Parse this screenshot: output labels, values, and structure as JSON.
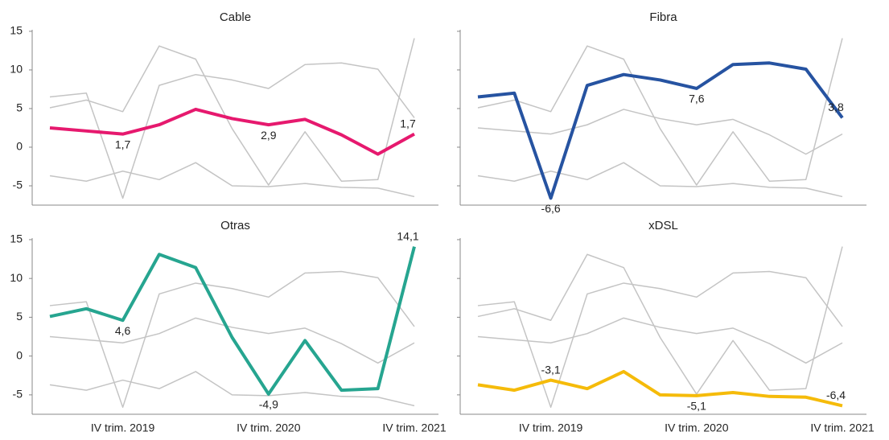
{
  "chart_data": {
    "type": "line",
    "categories": [
      null,
      null,
      "IV trim. 2019",
      null,
      null,
      null,
      "IV trim. 2020",
      null,
      null,
      null,
      "IV trim. 2021"
    ],
    "ylim": [
      -7.5,
      15.2
    ],
    "yticks": [
      15,
      10,
      5,
      0,
      -5
    ],
    "other_series_color": "#c4c4c4",
    "series": [
      {
        "name": "Cable",
        "color": "#e6196e",
        "values": [
          2.5,
          2.1,
          1.7,
          2.9,
          4.9,
          3.7,
          2.9,
          3.6,
          1.6,
          -0.9,
          1.7
        ],
        "value_labels": [
          null,
          null,
          "1,7",
          null,
          null,
          null,
          "2,9",
          null,
          null,
          null,
          "1,7"
        ]
      },
      {
        "name": "Fibra",
        "color": "#2653a1",
        "values": [
          6.5,
          7.0,
          -6.6,
          8.0,
          9.4,
          8.7,
          7.6,
          10.7,
          10.9,
          10.1,
          3.8
        ],
        "value_labels": [
          null,
          null,
          "-6,6",
          null,
          null,
          null,
          "7,6",
          null,
          null,
          null,
          "3,8"
        ]
      },
      {
        "name": "Otras",
        "color": "#26a590",
        "values": [
          5.1,
          6.1,
          4.6,
          13.1,
          11.4,
          2.4,
          -4.9,
          2.0,
          -4.4,
          -4.2,
          14.1
        ],
        "value_labels": [
          null,
          null,
          "4,6",
          null,
          null,
          null,
          "-4,9",
          null,
          null,
          null,
          "14,1"
        ]
      },
      {
        "name": "xDSL",
        "color": "#f5bb0a",
        "values": [
          -3.7,
          -4.4,
          -3.1,
          -4.2,
          -2.0,
          -5.0,
          -5.1,
          -4.7,
          -5.2,
          -5.3,
          -6.4
        ],
        "value_labels": [
          null,
          null,
          "-3,1",
          null,
          null,
          null,
          "-5,1",
          null,
          null,
          null,
          "-6,4"
        ]
      }
    ]
  }
}
